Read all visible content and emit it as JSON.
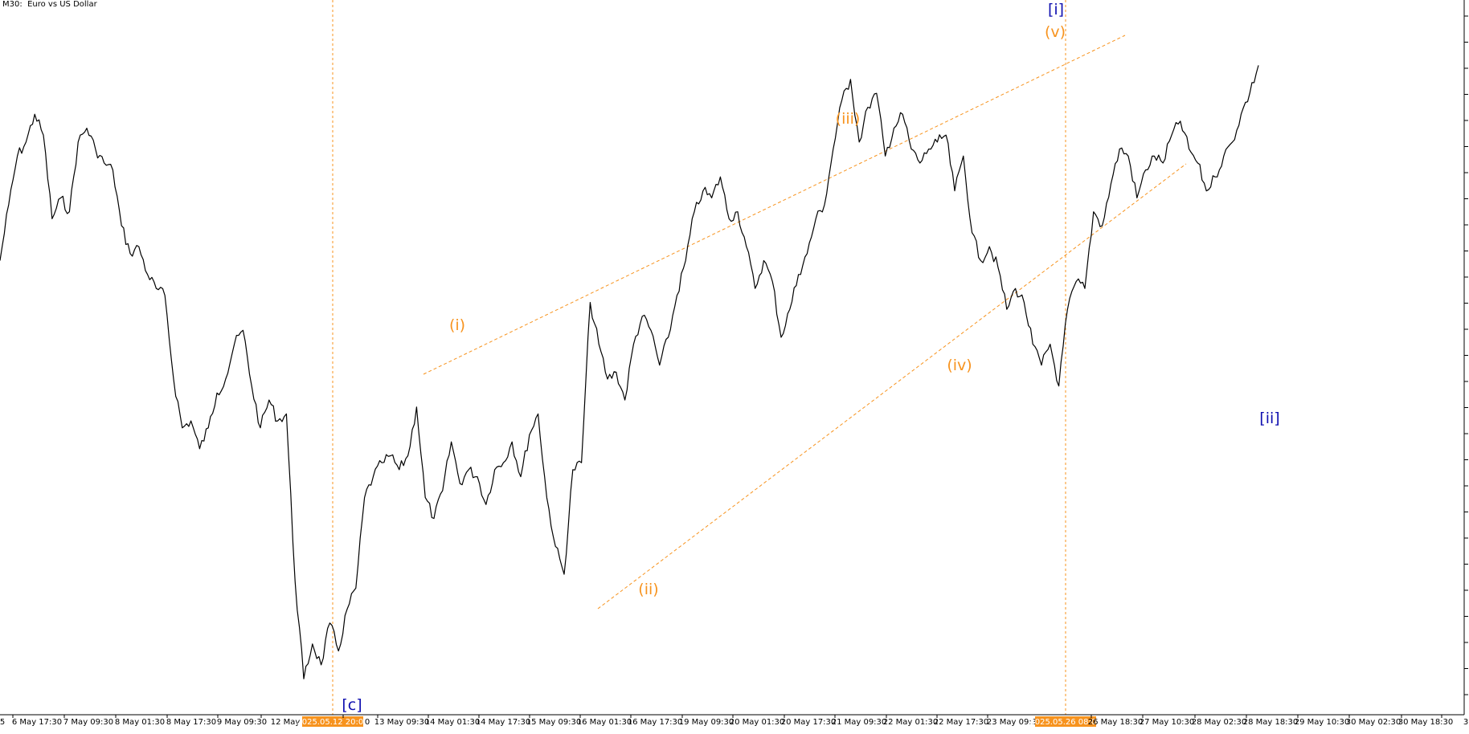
{
  "header": {
    "symbol_title": "M30:  Euro vs US Dollar"
  },
  "colors": {
    "price_line": "#000000",
    "wave_label": "#F7931E",
    "degree_label": "#1010B0",
    "trend_line": "#F7931E",
    "time_badge": "#F7931E"
  },
  "chart_data": {
    "type": "line",
    "timeframe": "M30",
    "title": "",
    "xlabel": "",
    "ylabel": "",
    "x_ticks": [
      "5",
      "6 May 17:30",
      "7 May 09:30",
      "8 May 01:30",
      "8 May 17:30",
      "9 May 09:30",
      "12 May",
      "2025.05.12 20:00",
      "0",
      "13 May 09:30",
      "14 May 01:30",
      "14 May 17:30",
      "15 May 09:30",
      "16 May 01:30",
      "16 May 17:30",
      "19 May 09:30",
      "20 May 01:30",
      "20 May 17:30",
      "21 May 09:30",
      "22 May 01:30",
      "22 May 17:30",
      "23 May 09:3",
      "2025.05.26 08:00",
      "26 May 18:30",
      "27 May 10:30",
      "28 May 02:30",
      "28 May 18:30",
      "29 May 10:30",
      "30 May 02:30",
      "30 May 18:30",
      "3"
    ],
    "vertical_markers": [
      "2025.05.12 20:00",
      "2025.05.26 08:00"
    ],
    "wave_labels": [
      {
        "text": "[c]",
        "degree": "minor",
        "color": "blue"
      },
      {
        "text": "(i)",
        "degree": "minute",
        "color": "orange"
      },
      {
        "text": "(ii)",
        "degree": "minute",
        "color": "orange"
      },
      {
        "text": "(iii)",
        "degree": "minute",
        "color": "orange"
      },
      {
        "text": "(iv)",
        "degree": "minute",
        "color": "orange"
      },
      {
        "text": "(v)",
        "degree": "minute",
        "color": "orange"
      },
      {
        "text": "[i]",
        "degree": "minor",
        "color": "blue"
      },
      {
        "text": "[ii]",
        "degree": "minor",
        "color": "blue"
      }
    ],
    "pattern": "leading diagonal with converging trend lines",
    "price_path_note": "price axis values not printed; series shape only",
    "series": [
      {
        "values": [
          0.64,
          0.72,
          0.79,
          0.81,
          0.85,
          0.82,
          0.7,
          0.73,
          0.71,
          0.81,
          0.83,
          0.8,
          0.78,
          0.77,
          0.69,
          0.65,
          0.66,
          0.62,
          0.6,
          0.59,
          0.47,
          0.4,
          0.41,
          0.37,
          0.4,
          0.45,
          0.47,
          0.52,
          0.54,
          0.46,
          0.4,
          0.44,
          0.41,
          0.42,
          0.18,
          0.04,
          0.09,
          0.06,
          0.12,
          0.08,
          0.14,
          0.17,
          0.3,
          0.33,
          0.35,
          0.36,
          0.34,
          0.36,
          0.43,
          0.3,
          0.27,
          0.31,
          0.38,
          0.32,
          0.34,
          0.33,
          0.29,
          0.34,
          0.35,
          0.38,
          0.33,
          0.39,
          0.42,
          0.3,
          0.23,
          0.19,
          0.34,
          0.35,
          0.58,
          0.52,
          0.47,
          0.48,
          0.44,
          0.52,
          0.56,
          0.54,
          0.49,
          0.53,
          0.59,
          0.64,
          0.71,
          0.74,
          0.73,
          0.76,
          0.7,
          0.71,
          0.66,
          0.6,
          0.64,
          0.61,
          0.53,
          0.57,
          0.62,
          0.65,
          0.7,
          0.72,
          0.8,
          0.87,
          0.9,
          0.81,
          0.86,
          0.88,
          0.79,
          0.83,
          0.85,
          0.8,
          0.78,
          0.8,
          0.81,
          0.82,
          0.74,
          0.79,
          0.68,
          0.64,
          0.66,
          0.63,
          0.57,
          0.6,
          0.58,
          0.52,
          0.49,
          0.52,
          0.46,
          0.57,
          0.61,
          0.6,
          0.71,
          0.69,
          0.75,
          0.8,
          0.79,
          0.73,
          0.77,
          0.79,
          0.78,
          0.82,
          0.84,
          0.8,
          0.78,
          0.74,
          0.76,
          0.79,
          0.81,
          0.85,
          0.88,
          0.92
        ]
      }
    ]
  }
}
